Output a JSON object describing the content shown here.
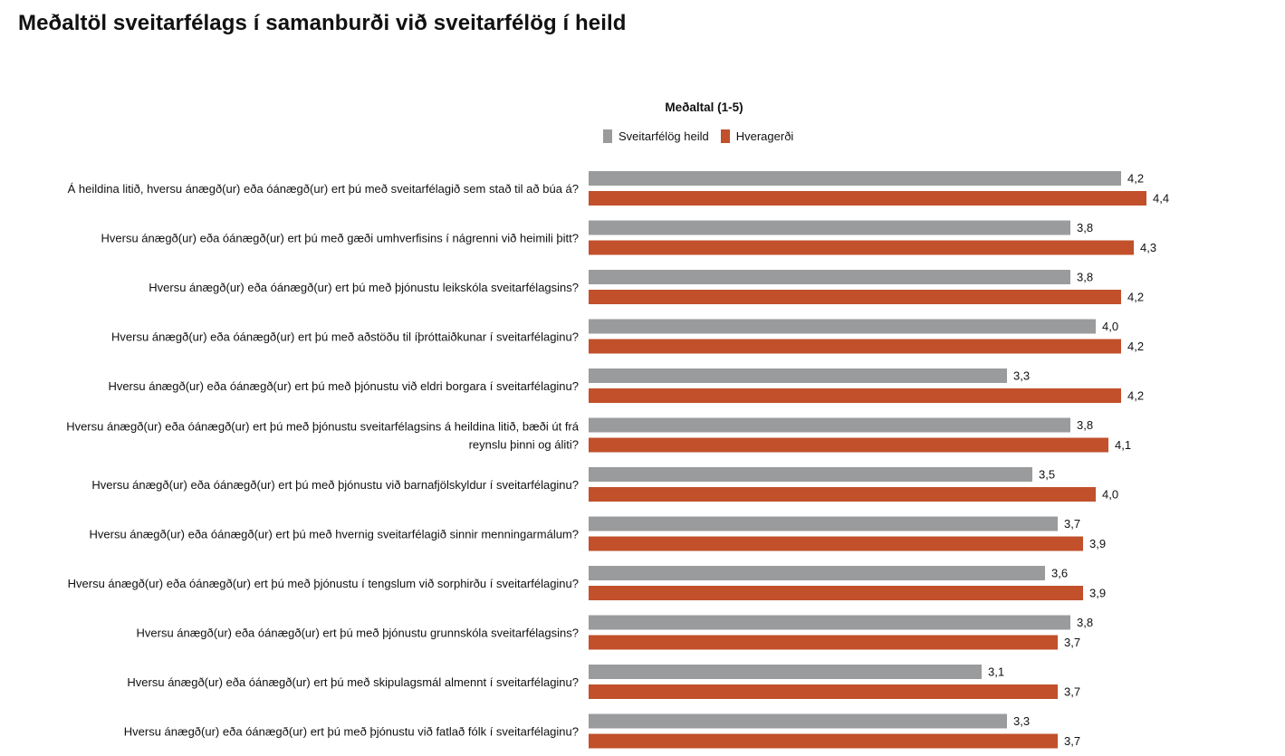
{
  "page": {
    "title": "Meðaltöl sveitarfélags í samanburði við sveitarfélög í heild"
  },
  "colors": {
    "series_1": "#999b9c",
    "series_2": "#c1502b"
  },
  "chart_data": {
    "type": "bar",
    "orientation": "horizontal",
    "title": "Meðaltal (1-5)",
    "legend": [
      "Sveitarfélög heild",
      "Hveragerði"
    ],
    "legend_position": "top",
    "xlim": [
      0,
      5
    ],
    "grid": false,
    "categories": [
      [
        "Á heildina litið, hversu ánægð(ur) eða óánægð(ur) ert þú með sveitarfélagið sem stað til að búa á?"
      ],
      [
        "Hversu ánægð(ur) eða óánægð(ur) ert þú með gæði umhverfisins í nágrenni við heimili þitt?"
      ],
      [
        "Hversu ánægð(ur) eða óánægð(ur) ert þú með þjónustu leikskóla sveitarfélagsins?"
      ],
      [
        "Hversu ánægð(ur) eða óánægð(ur) ert þú með aðstöðu til íþróttaiðkunar í sveitarfélaginu?"
      ],
      [
        "Hversu ánægð(ur) eða óánægð(ur) ert þú með þjónustu við eldri borgara í sveitarfélaginu?"
      ],
      [
        "Hversu ánægð(ur) eða óánægð(ur) ert þú með þjónustu sveitarfélagsins á heildina litið, bæði út frá",
        "reynslu þinni og áliti?"
      ],
      [
        "Hversu ánægð(ur) eða óánægð(ur) ert þú með þjónustu við barnafjölskyldur í sveitarfélaginu?"
      ],
      [
        "Hversu ánægð(ur) eða óánægð(ur) ert þú með hvernig sveitarfélagið sinnir menningarmálum?"
      ],
      [
        "Hversu ánægð(ur) eða óánægð(ur) ert þú með þjónustu í tengslum við sorphirðu í sveitarfélaginu?"
      ],
      [
        "Hversu ánægð(ur) eða óánægð(ur) ert þú með þjónustu grunnskóla sveitarfélagsins?"
      ],
      [
        "Hversu ánægð(ur) eða óánægð(ur) ert þú með skipulagsmál almennt í sveitarfélaginu?"
      ],
      [
        "Hversu ánægð(ur) eða óánægð(ur) ert þú með þjónustu við fatlað fólk í sveitarfélaginu?"
      ]
    ],
    "series": [
      {
        "name": "Sveitarfélög heild",
        "values": [
          4.2,
          3.8,
          3.8,
          4.0,
          3.3,
          3.8,
          3.5,
          3.7,
          3.6,
          3.8,
          3.1,
          3.3
        ],
        "labels": [
          "4,2",
          "3,8",
          "3,8",
          "4,0",
          "3,3",
          "3,8",
          "3,5",
          "3,7",
          "3,6",
          "3,8",
          "3,1",
          "3,3"
        ]
      },
      {
        "name": "Hveragerði",
        "values": [
          4.4,
          4.3,
          4.2,
          4.2,
          4.2,
          4.1,
          4.0,
          3.9,
          3.9,
          3.7,
          3.7,
          3.7
        ],
        "labels": [
          "4,4",
          "4,3",
          "4,2",
          "4,2",
          "4,2",
          "4,1",
          "4,0",
          "3,9",
          "3,9",
          "3,7",
          "3,7",
          "3,7"
        ]
      }
    ]
  }
}
